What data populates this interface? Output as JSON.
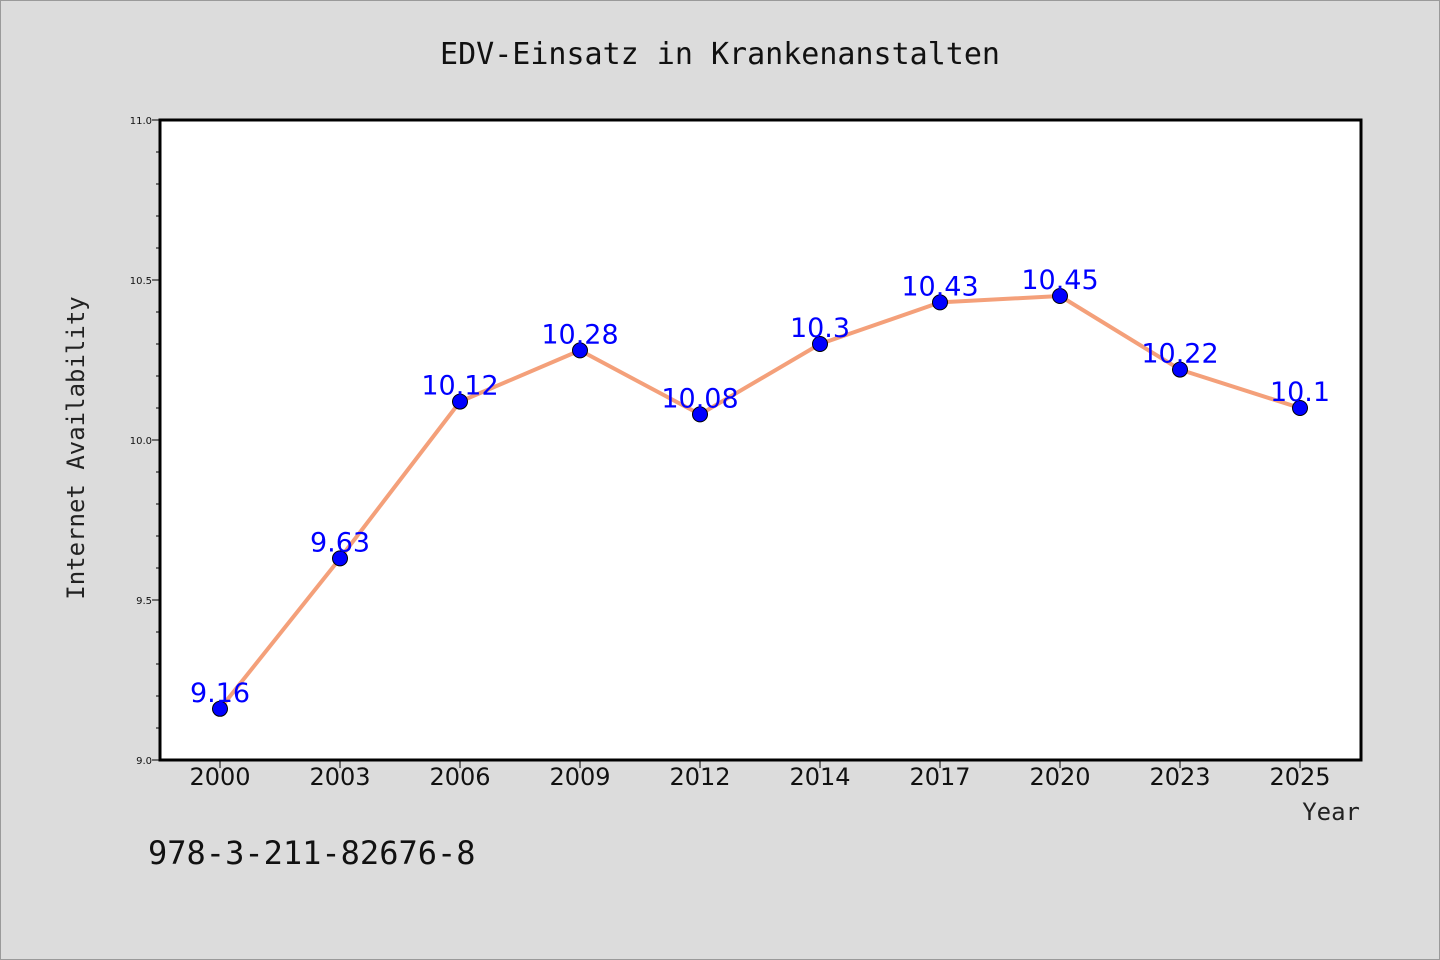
{
  "chart_data": {
    "type": "line",
    "title": "EDV-Einsatz in Krankenanstalten",
    "xlabel": "Year",
    "ylabel": "Internet Availability",
    "categories": [
      "2000",
      "2003",
      "2006",
      "2009",
      "2012",
      "2014",
      "2017",
      "2020",
      "2023",
      "2025"
    ],
    "series": [
      {
        "values": [
          9.16,
          9.63,
          10.12,
          10.28,
          10.08,
          10.3,
          10.43,
          10.45,
          10.22,
          10.1
        ],
        "labels": [
          "9.16",
          "9.63",
          "10.12",
          "10.28",
          "10.08",
          "10.3",
          "10.43",
          "10.45",
          "10.22",
          "10.1"
        ],
        "line_color": "#f4a07a",
        "marker_color": "#0000ff"
      }
    ],
    "ylim": [
      9.0,
      11.0
    ],
    "yticks": [
      "9.0",
      "9.5",
      "10.0",
      "10.5",
      "11.0"
    ],
    "grid": false,
    "legend": "none"
  },
  "footer": {
    "isbn": "978-3-211-82676-8"
  },
  "colors": {
    "background": "#dcdcdc",
    "plot_background": "#ffffff",
    "line": "#f4a07a",
    "marker": "#0000ff",
    "data_label": "#0000ff"
  }
}
